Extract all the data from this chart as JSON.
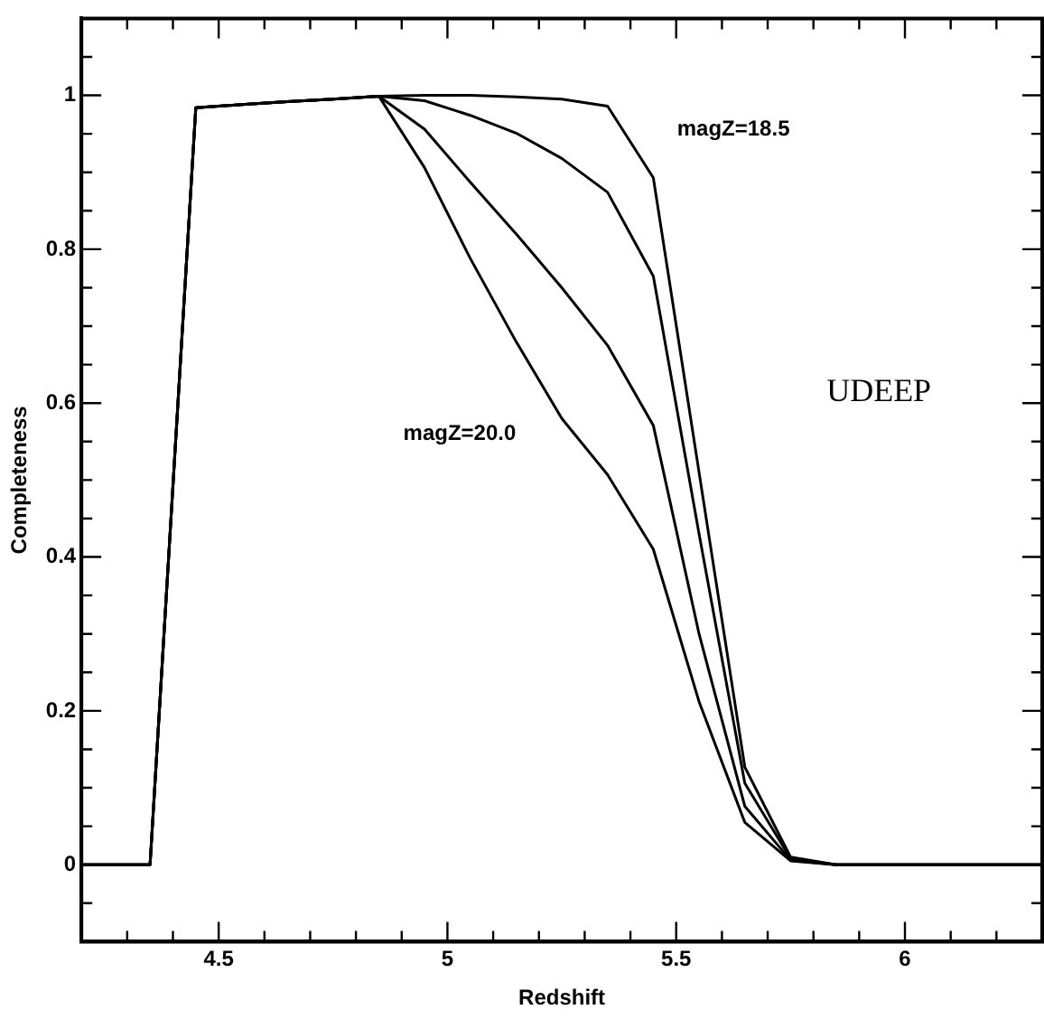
{
  "chart_data": {
    "type": "line",
    "xlabel": "Redshift",
    "ylabel": "Completeness",
    "x": [
      4.2,
      4.35,
      4.45,
      4.55,
      4.65,
      4.75,
      4.85,
      4.95,
      5.05,
      5.15,
      5.25,
      5.35,
      5.45,
      5.55,
      5.65,
      5.75,
      5.85,
      6.3
    ],
    "series": [
      {
        "color": "#000000",
        "values": [
          0,
          0,
          0.984,
          0.988,
          0.992,
          0.995,
          0.999,
          1.0,
          1.0,
          0.998,
          0.995,
          0.986,
          0.893,
          0.51,
          0.127,
          0.01,
          0,
          0
        ]
      },
      {
        "color": "#000000",
        "values": [
          0,
          0,
          0.984,
          0.988,
          0.992,
          0.995,
          0.999,
          0.993,
          0.974,
          0.951,
          0.918,
          0.874,
          0.765,
          0.43,
          0.106,
          0.008,
          0,
          0
        ]
      },
      {
        "color": "#000000",
        "values": [
          0,
          0,
          0.984,
          0.988,
          0.992,
          0.995,
          0.999,
          0.956,
          0.887,
          0.82,
          0.75,
          0.675,
          0.571,
          0.3,
          0.076,
          0.006,
          0,
          0
        ]
      },
      {
        "color": "#000000",
        "values": [
          0,
          0,
          0.984,
          0.988,
          0.992,
          0.995,
          0.999,
          0.906,
          0.788,
          0.68,
          0.58,
          0.507,
          0.41,
          0.212,
          0.055,
          0.005,
          0,
          0
        ]
      }
    ],
    "xlim": [
      4.2,
      6.3
    ],
    "ylim": [
      -0.1,
      1.1
    ],
    "xticks": [
      {
        "value": 4.3,
        "label": null
      },
      {
        "value": 4.4,
        "label": null
      },
      4.5,
      {
        "value": 4.6,
        "label": null
      },
      {
        "value": 4.7,
        "label": null
      },
      {
        "value": 4.8,
        "label": null
      },
      {
        "value": 4.9,
        "label": null
      },
      5,
      {
        "value": 5.1,
        "label": null
      },
      {
        "value": 5.2,
        "label": null
      },
      {
        "value": 5.3,
        "label": null
      },
      {
        "value": 5.4,
        "label": null
      },
      5.5,
      {
        "value": 5.6,
        "label": null
      },
      {
        "value": 5.7,
        "label": null
      },
      {
        "value": 5.8,
        "label": null
      },
      {
        "value": 5.9,
        "label": null
      },
      6,
      {
        "value": 6.1,
        "label": null
      },
      {
        "value": 6.2,
        "label": null
      }
    ],
    "yticks": [
      {
        "value": -0.05,
        "label": null
      },
      0,
      {
        "value": 0.05,
        "label": null
      },
      {
        "value": 0.1,
        "label": null
      },
      {
        "value": 0.15,
        "label": null
      },
      0.2,
      {
        "value": 0.25,
        "label": null
      },
      {
        "value": 0.3,
        "label": null
      },
      {
        "value": 0.35,
        "label": null
      },
      0.4,
      {
        "value": 0.45,
        "label": null
      },
      {
        "value": 0.5,
        "label": null
      },
      {
        "value": 0.55,
        "label": null
      },
      0.6,
      {
        "value": 0.65,
        "label": null
      },
      {
        "value": 0.7,
        "label": null
      },
      {
        "value": 0.75,
        "label": null
      },
      0.8,
      {
        "value": 0.85,
        "label": null
      },
      {
        "value": 0.9,
        "label": null
      },
      {
        "value": 0.95,
        "label": null
      },
      1,
      {
        "value": 1.05,
        "label": null
      }
    ],
    "grid": false,
    "legend": false,
    "marker": "none",
    "line_style": "solid",
    "annotations": [
      "magZ=18.5",
      "magZ=20.0",
      "UDEEP"
    ]
  }
}
